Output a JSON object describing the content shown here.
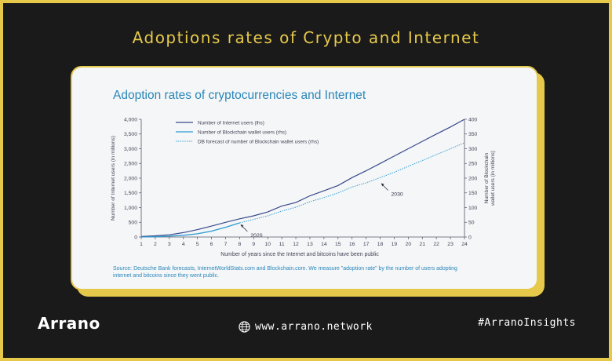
{
  "banner": {
    "title": "Adoptions rates of Crypto and Internet"
  },
  "footer": {
    "logo_text": "Arrano",
    "website": "www.arrano.network",
    "hashtag": "#ArranoInsights"
  },
  "colors": {
    "accent": "#e6c94a",
    "background": "#1a1a1a",
    "internet_line": "#3a4a8a",
    "blockchain_line": "#2e9bd0",
    "forecast_line": "#2e9bd0"
  },
  "chart_data": {
    "type": "line",
    "title": "Adoption rates of cryptocurrencies and Internet",
    "xlabel": "Number of years since the Internet and bitcoins have been public",
    "ylabel_left": "Number of Internet users (in millions)",
    "ylabel_right": "Number of Blockchain wallet users (in millions)",
    "x_ticks": [
      1,
      2,
      3,
      4,
      5,
      6,
      7,
      8,
      9,
      10,
      11,
      12,
      13,
      14,
      15,
      16,
      17,
      18,
      19,
      20,
      21,
      22,
      23,
      24
    ],
    "ylim_left": [
      0,
      4000
    ],
    "y_ticks_left": [
      "0",
      "500",
      "1,000",
      "1,500",
      "2,000",
      "2,500",
      "3,000",
      "3,500",
      "4,000"
    ],
    "ylim_right": [
      0,
      400
    ],
    "y_ticks_right": [
      "0",
      "50",
      "100",
      "150",
      "200",
      "250",
      "300",
      "350",
      "400"
    ],
    "series": [
      {
        "name": "Number of Internet users (lhs)",
        "axis": "left",
        "style": "solid",
        "x": [
          1,
          2,
          3,
          4,
          5,
          6,
          7,
          8,
          9,
          10,
          11,
          12,
          13,
          14,
          15,
          16,
          17,
          18,
          19,
          20,
          21,
          22,
          23,
          24
        ],
        "values": [
          20,
          40,
          75,
          150,
          250,
          370,
          500,
          620,
          720,
          850,
          1050,
          1170,
          1400,
          1570,
          1750,
          2020,
          2250,
          2500,
          2750,
          3000,
          3250,
          3500,
          3740,
          4000
        ]
      },
      {
        "name": "Number of Blockchain wallet users (rhs)",
        "axis": "right",
        "style": "solid",
        "x": [
          1,
          2,
          3,
          4,
          5,
          6,
          7,
          8
        ],
        "values": [
          0,
          1,
          3,
          6,
          11,
          20,
          33,
          48
        ]
      },
      {
        "name": "DB forecast of number of Blockchain wallet users (rhs)",
        "axis": "right",
        "style": "dotted",
        "x": [
          8,
          9,
          10,
          11,
          12,
          13,
          14,
          15,
          16,
          17,
          18,
          19,
          20,
          21,
          22,
          23,
          24
        ],
        "values": [
          48,
          60,
          72,
          88,
          101,
          120,
          134,
          150,
          170,
          184,
          202,
          220,
          240,
          260,
          280,
          300,
          320
        ]
      }
    ],
    "annotations": [
      {
        "text": "2020",
        "x": 8,
        "y_right": 48
      },
      {
        "text": "2030",
        "x": 18,
        "y_right": 188
      }
    ],
    "source": "Source: Deutsche Bank forecasts, InternetWorldStats.com and Blockchain.com. We measure \"adoption rate\" by the number of users adopting internet and bitcoins since they went public."
  }
}
